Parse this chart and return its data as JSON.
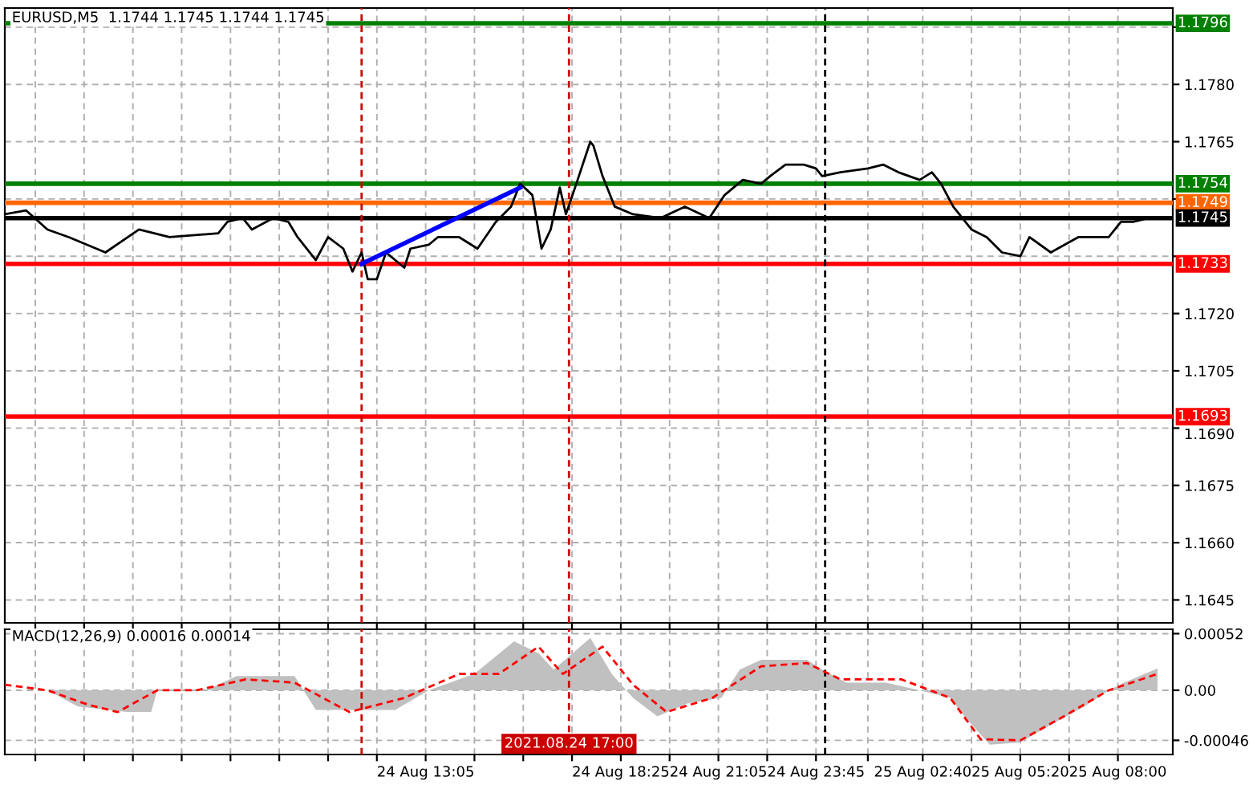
{
  "chart_data": [
    {
      "type": "line",
      "title": "EURUSD,M5  1.1744 1.1745 1.1744 1.1745",
      "xlim": [
        "2021-08-24T01:35",
        "2021-08-25T09:30"
      ],
      "ylim": [
        1.1639,
        1.18
      ],
      "xticks": [
        {
          "value": "2021-08-24T02:25",
          "label": null
        },
        {
          "value": "2021-08-24T03:45",
          "label": null
        },
        {
          "value": "2021-08-24T05:05",
          "label": null
        },
        {
          "value": "2021-08-24T06:25",
          "label": null
        },
        {
          "value": "2021-08-24T07:45",
          "label": null
        },
        {
          "value": "2021-08-24T09:05",
          "label": null
        },
        {
          "value": "2021-08-24T10:25",
          "label": null
        },
        {
          "value": "2021-08-24T11:45",
          "label": null
        },
        {
          "value": "2021-08-24T13:05",
          "label": null
        },
        {
          "value": "2021-08-24T14:25",
          "label": null
        },
        {
          "value": "2021-08-24T15:45",
          "label": null
        },
        {
          "value": "2021-08-24T17:05",
          "label": null
        },
        {
          "value": "2021-08-24T18:25",
          "label": null
        },
        {
          "value": "2021-08-24T19:45",
          "label": null
        },
        {
          "value": "2021-08-24T21:05",
          "label": null
        },
        {
          "value": "2021-08-24T22:25",
          "label": null
        },
        {
          "value": "2021-08-24T23:45",
          "label": null
        },
        {
          "value": "2021-08-25T01:10",
          "label": null
        },
        {
          "value": "2021-08-25T02:40",
          "label": null
        },
        {
          "value": "2021-08-25T04:00",
          "label": null
        },
        {
          "value": "2021-08-25T05:20",
          "label": null
        },
        {
          "value": "2021-08-25T06:40",
          "label": null
        },
        {
          "value": "2021-08-25T08:00",
          "label": null
        }
      ],
      "yticks": [
        1.1645,
        {
          "value": 1.166,
          "label": "1.1660"
        },
        1.1675,
        {
          "value": 1.169,
          "label": "1.1690"
        },
        1.1705,
        {
          "value": 1.172,
          "label": "1.1720"
        },
        {
          "value": 1.1735,
          "label": null
        },
        {
          "value": 1.175,
          "label": null
        },
        1.1765,
        {
          "value": 1.178,
          "label": "1.1780"
        },
        {
          "value": 1.1795,
          "label": null
        }
      ],
      "tick_labels": "y",
      "grid": true,
      "marker": "none",
      "series": [
        {
          "color": "#000000",
          "line_style": "solid",
          "x": [
            "2021-08-24T01:35",
            "2021-08-24T02:10",
            "2021-08-24T02:45",
            "2021-08-24T03:20",
            "2021-08-24T04:20",
            "2021-08-24T05:15",
            "2021-08-24T06:05",
            "2021-08-24T07:25",
            "2021-08-24T07:40",
            "2021-08-24T08:05",
            "2021-08-24T08:20",
            "2021-08-24T08:55",
            "2021-08-24T09:20",
            "2021-08-24T09:35",
            "2021-08-24T10:05",
            "2021-08-24T10:25",
            "2021-08-24T10:50",
            "2021-08-24T11:05",
            "2021-08-24T11:20",
            "2021-08-24T11:30",
            "2021-08-24T11:45",
            "2021-08-24T12:00",
            "2021-08-24T12:30",
            "2021-08-24T12:40",
            "2021-08-24T13:10",
            "2021-08-24T13:25",
            "2021-08-24T14:00",
            "2021-08-24T14:30",
            "2021-08-24T15:00",
            "2021-08-24T15:25",
            "2021-08-24T15:40",
            "2021-08-24T16:00",
            "2021-08-24T16:15",
            "2021-08-24T16:30",
            "2021-08-24T16:45",
            "2021-08-24T16:55",
            "2021-08-24T17:10",
            "2021-08-24T17:35",
            "2021-08-24T17:40",
            "2021-08-24T17:55",
            "2021-08-24T18:15",
            "2021-08-24T18:45",
            "2021-08-24T19:30",
            "2021-08-24T20:10",
            "2021-08-24T20:50",
            "2021-08-24T21:15",
            "2021-08-24T21:45",
            "2021-08-24T22:15",
            "2021-08-24T22:30",
            "2021-08-24T22:55",
            "2021-08-24T23:25",
            "2021-08-24T23:45",
            "2021-08-24T23:55",
            "2021-08-25T00:25",
            "2021-08-25T01:10",
            "2021-08-25T01:35",
            "2021-08-25T02:00",
            "2021-08-25T02:35",
            "2021-08-25T02:55",
            "2021-08-25T03:10",
            "2021-08-25T03:30",
            "2021-08-25T04:00",
            "2021-08-25T04:25",
            "2021-08-25T04:50",
            "2021-08-25T05:20",
            "2021-08-25T05:35",
            "2021-08-25T06:10",
            "2021-08-25T06:55",
            "2021-08-25T07:45",
            "2021-08-25T08:05",
            "2021-08-25T08:25",
            "2021-08-25T08:50"
          ],
          "values": [
            1.1746,
            1.1747,
            1.1742,
            1.174,
            1.1736,
            1.1742,
            1.174,
            1.1741,
            1.1744,
            1.1745,
            1.1742,
            1.1745,
            1.1744,
            1.174,
            1.1734,
            1.174,
            1.1737,
            1.1731,
            1.1736,
            1.1729,
            1.1729,
            1.1736,
            1.1732,
            1.1737,
            1.1738,
            1.174,
            1.174,
            1.1737,
            1.1744,
            1.1748,
            1.1754,
            1.1751,
            1.1737,
            1.1742,
            1.1753,
            1.1746,
            1.1753,
            1.1765,
            1.1764,
            1.1756,
            1.1748,
            1.1746,
            1.1745,
            1.1748,
            1.1745,
            1.1751,
            1.1755,
            1.1754,
            1.1756,
            1.1759,
            1.1759,
            1.1758,
            1.1756,
            1.1757,
            1.1758,
            1.1759,
            1.1757,
            1.1755,
            1.1757,
            1.1754,
            1.1748,
            1.1742,
            1.174,
            1.1736,
            1.1735,
            1.174,
            1.1736,
            1.174,
            1.174,
            1.1744,
            1.1744,
            1.1745
          ]
        },
        {
          "color": "#0000ff",
          "line_style": "solid",
          "x": [
            "2021-08-24T11:20",
            "2021-08-24T15:40"
          ],
          "values": [
            1.1733,
            1.1753
          ]
        }
      ],
      "ref_lines": [
        {
          "axis": "y",
          "value": 1.1796,
          "label": "1.1796",
          "color": "#008000"
        },
        {
          "axis": "y",
          "value": 1.1754,
          "label": "1.1754",
          "color": "#008000"
        },
        {
          "axis": "y",
          "value": 1.1749,
          "label": "1.1749",
          "color": "#ff6600"
        },
        {
          "axis": "y",
          "value": 1.1745,
          "label": "1.1745",
          "color": "#000000"
        },
        {
          "axis": "y",
          "value": 1.1733,
          "label": "1.1733",
          "color": "#ff0000"
        },
        {
          "axis": "y",
          "value": 1.1693,
          "label": "1.1693",
          "color": "#ff0000"
        },
        {
          "axis": "x",
          "value": "2021-08-24T11:20",
          "label": null,
          "color": "#cc0000",
          "line_style": "dashed"
        },
        {
          "axis": "x",
          "value": "2021-08-24T17:00",
          "label": null,
          "color": "#cc0000",
          "line_style": "dashed"
        },
        {
          "axis": "x",
          "value": "2021-08-25T00:00",
          "label": null,
          "color": "#000000",
          "line_style": "dashed"
        }
      ]
    },
    {
      "type": "line",
      "title": "MACD(12,26,9) 0.00016 0.00014",
      "xlim": [
        "2021-08-24T01:35",
        "2021-08-25T09:30"
      ],
      "ylim": [
        -0.00059,
        0.00056
      ],
      "xticks": [
        {
          "value": "2021-08-24T02:25",
          "label": null
        },
        {
          "value": "2021-08-24T03:45",
          "label": null
        },
        {
          "value": "2021-08-24T05:05",
          "label": null
        },
        {
          "value": "2021-08-24T06:25",
          "label": null
        },
        {
          "value": "2021-08-24T07:45",
          "label": null
        },
        {
          "value": "2021-08-24T09:05",
          "label": null
        },
        {
          "value": "2021-08-24T10:25",
          "label": null
        },
        {
          "value": "2021-08-24T11:45",
          "label": null
        },
        {
          "value": "2021-08-24T13:05",
          "label": "24 Aug 13:05"
        },
        {
          "value": "2021-08-24T14:25",
          "label": null
        },
        {
          "value": "2021-08-24T15:45",
          "label": null
        },
        {
          "value": "2021-08-24T17:05",
          "label": null
        },
        {
          "value": "2021-08-24T18:25",
          "label": "24 Aug 18:25"
        },
        {
          "value": "2021-08-24T19:45",
          "label": null
        },
        {
          "value": "2021-08-24T21:05",
          "label": "24 Aug 21:05"
        },
        {
          "value": "2021-08-24T22:25",
          "label": null
        },
        {
          "value": "2021-08-24T23:45",
          "label": "24 Aug 23:45"
        },
        {
          "value": "2021-08-25T01:10",
          "label": null
        },
        {
          "value": "2021-08-25T02:40",
          "label": "25 Aug 02:40"
        },
        {
          "value": "2021-08-25T04:00",
          "label": null
        },
        {
          "value": "2021-08-25T05:20",
          "label": "25 Aug 05:20"
        },
        {
          "value": "2021-08-25T06:40",
          "label": null
        },
        {
          "value": "2021-08-25T08:00",
          "label": "25 Aug 08:00"
        }
      ],
      "yticks": [
        {
          "value": 0.00052,
          "label": "0.00052"
        },
        {
          "value": 0,
          "label": "0.00"
        },
        {
          "value": -0.00046,
          "label": "-0.00046"
        }
      ],
      "grid": true,
      "marker": "none",
      "series": [
        {
          "type": "area",
          "color": "#c0c0c0",
          "x": [
            "2021-08-24T01:35",
            "2021-08-24T02:45",
            "2021-08-24T03:35",
            "2021-08-24T04:55",
            "2021-08-24T05:35",
            "2021-08-24T05:45",
            "2021-08-24T07:05",
            "2021-08-24T07:55",
            "2021-08-24T09:30",
            "2021-08-24T10:05",
            "2021-08-24T12:15",
            "2021-08-24T13:10",
            "2021-08-24T14:25",
            "2021-08-24T15:30",
            "2021-08-24T16:10",
            "2021-08-24T16:35",
            "2021-08-24T17:35",
            "2021-08-24T18:10",
            "2021-08-24T18:45",
            "2021-08-24T19:25",
            "2021-08-24T20:15",
            "2021-08-24T21:10",
            "2021-08-24T21:40",
            "2021-08-24T22:15",
            "2021-08-24T23:30",
            "2021-08-24T23:55",
            "2021-08-25T00:35",
            "2021-08-25T01:40",
            "2021-08-25T02:35",
            "2021-08-25T03:25",
            "2021-08-25T03:50",
            "2021-08-25T04:30",
            "2021-08-25T05:20",
            "2021-08-25T06:15",
            "2021-08-25T07:05",
            "2021-08-25T07:45",
            "2021-08-25T08:10",
            "2021-08-25T09:05"
          ],
          "values": [
            0.0,
            0.0,
            -0.00015,
            -0.0002,
            -0.0002,
            0.0,
            0.0,
            0.00013,
            0.00013,
            -0.00018,
            -0.00018,
            0.0,
            0.00015,
            0.00045,
            0.00034,
            0.00019,
            0.00048,
            0.00015,
            -7e-05,
            -0.00024,
            -0.00012,
            -7e-05,
            0.00019,
            0.00028,
            0.00028,
            0.00019,
            7e-05,
            7e-05,
            0.0,
            -7e-05,
            -0.00025,
            -0.0005,
            -0.00048,
            -0.0003,
            -0.00015,
            0.0,
            7e-05,
            0.0002
          ]
        },
        {
          "type": "line",
          "color": "#ff0000",
          "line_style": "dashed",
          "x": [
            "2021-08-24T01:35",
            "2021-08-24T02:45",
            "2021-08-24T03:50",
            "2021-08-24T04:40",
            "2021-08-24T05:45",
            "2021-08-24T06:50",
            "2021-08-24T08:10",
            "2021-08-24T09:30",
            "2021-08-24T11:00",
            "2021-08-24T12:30",
            "2021-08-24T14:00",
            "2021-08-24T15:05",
            "2021-08-24T16:10",
            "2021-08-24T16:50",
            "2021-08-24T17:55",
            "2021-08-24T18:45",
            "2021-08-24T19:40",
            "2021-08-24T20:55",
            "2021-08-24T22:15",
            "2021-08-24T23:30",
            "2021-08-25T00:25",
            "2021-08-25T02:05",
            "2021-08-25T03:25",
            "2021-08-25T04:15",
            "2021-08-25T05:20",
            "2021-08-25T06:25",
            "2021-08-25T07:45",
            "2021-08-25T09:05"
          ],
          "values": [
            5e-05,
            0.0,
            -0.00013,
            -0.0002,
            0.0,
            0.0,
            0.0001,
            7e-05,
            -0.0002,
            -7e-05,
            0.00015,
            0.00015,
            0.0004,
            0.00015,
            0.0004,
            5e-05,
            -0.0002,
            -7e-05,
            0.00022,
            0.00025,
            0.0001,
            0.0001,
            -7e-05,
            -0.00045,
            -0.00046,
            -0.00026,
            0.0,
            0.00015
          ]
        }
      ],
      "ref_lines": [
        {
          "axis": "x",
          "value": "2021-08-24T11:20",
          "label": null,
          "color": "#cc0000",
          "line_style": "dashed"
        },
        {
          "axis": "x",
          "value": "2021-08-24T17:00",
          "label": "2021.08.24 17:00",
          "color": "#cc0000",
          "line_style": "dashed"
        },
        {
          "axis": "x",
          "value": "2021-08-25T00:00",
          "label": null,
          "color": "#000000",
          "line_style": "dashed"
        }
      ]
    }
  ]
}
